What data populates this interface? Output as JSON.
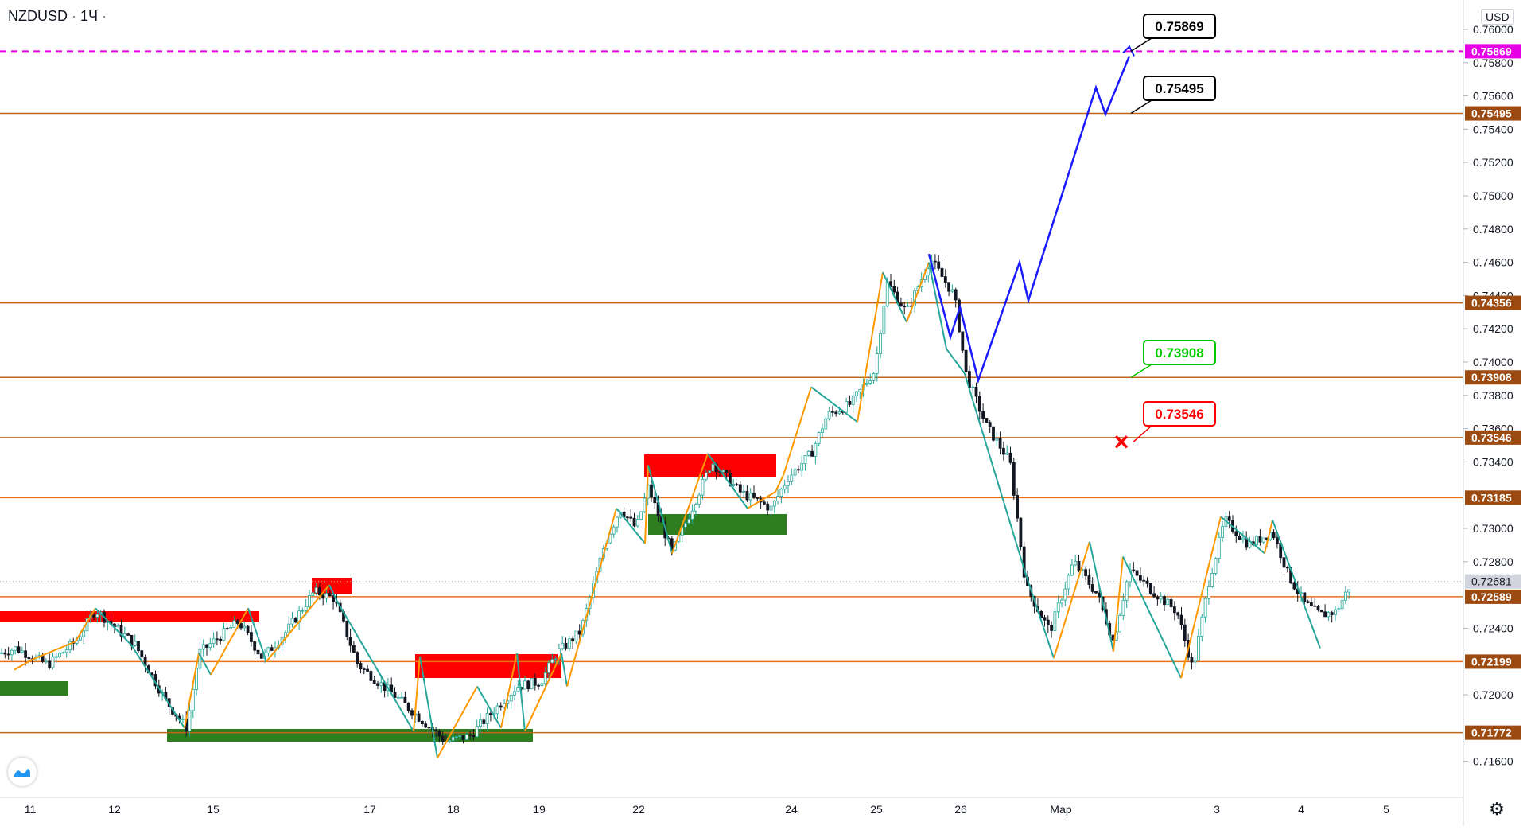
{
  "header": {
    "symbol": "NZDUSD",
    "sep": "·",
    "timeframe": "1Ч",
    "dot": "·"
  },
  "currency": "USD",
  "chart_data": {
    "type": "candlestick",
    "symbol": "NZDUSD",
    "timeframe": "1Ч",
    "ylim": [
      0.7155,
      0.7618
    ],
    "y_ticks": [
      "0.76000",
      "0.75800",
      "0.75600",
      "0.75400",
      "0.75200",
      "0.75000",
      "0.74800",
      "0.74600",
      "0.74400",
      "0.74200",
      "0.74000",
      "0.73800",
      "0.73600",
      "0.73400",
      "0.73000",
      "0.72800",
      "0.72400",
      "0.72000",
      "0.71600"
    ],
    "x_ticks": [
      "11",
      "12",
      "15",
      "17",
      "18",
      "19",
      "22",
      "24",
      "25",
      "26",
      "Мар",
      "3",
      "4",
      "5"
    ],
    "current_price": "0.72681",
    "levels": [
      {
        "label": "0.75869",
        "value": 0.75869,
        "color": "#e600e6",
        "style": "dashed"
      },
      {
        "label": "0.75495",
        "value": 0.75495,
        "color": "#c0661a",
        "style": "solid"
      },
      {
        "label": "0.74356",
        "value": 0.74356,
        "color": "#c0661a",
        "style": "solid"
      },
      {
        "label": "0.73908",
        "value": 0.73908,
        "color": "#c0661a",
        "style": "solid"
      },
      {
        "label": "0.73546",
        "value": 0.73546,
        "color": "#c0661a",
        "style": "solid"
      },
      {
        "label": "0.73185",
        "value": 0.73185,
        "color": "#e8701a",
        "style": "solid"
      },
      {
        "label": "0.72589",
        "value": 0.72589,
        "color": "#e8701a",
        "style": "solid"
      },
      {
        "label": "0.72199",
        "value": 0.72199,
        "color": "#e8701a",
        "style": "solid"
      },
      {
        "label": "0.71772",
        "value": 0.71772,
        "color": "#c0661a",
        "style": "solid"
      }
    ],
    "callouts": [
      {
        "label": "0.75869",
        "color": "#000000",
        "kind": "target"
      },
      {
        "label": "0.75495",
        "color": "#000000",
        "kind": "target"
      },
      {
        "label": "0.73908",
        "color": "#00c800",
        "kind": "entry"
      },
      {
        "label": "0.73546",
        "color": "#ff0000",
        "kind": "stop"
      }
    ],
    "colors": {
      "up": "#26a69a",
      "down": "#131722",
      "zigzag_up": "#ff9800",
      "zigzag_down": "#26a69a",
      "forecast": "#1a1aff",
      "resistance": "#ff0000",
      "support": "#2e7d1e"
    }
  }
}
